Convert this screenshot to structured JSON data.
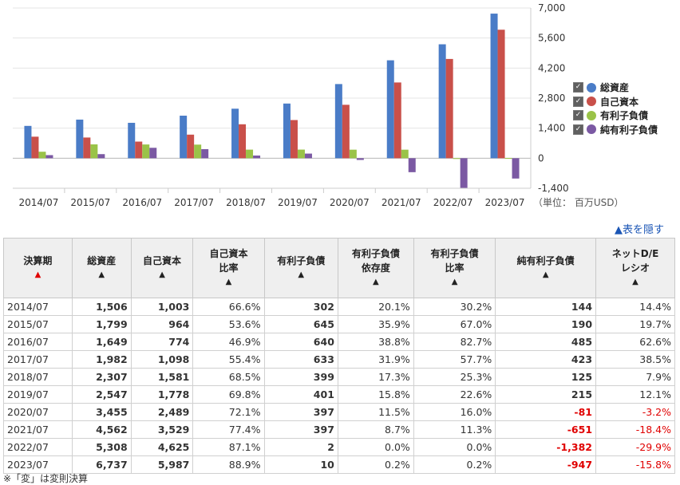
{
  "chart_data": {
    "type": "bar",
    "categories": [
      "2014/07",
      "2015/07",
      "2016/07",
      "2017/07",
      "2018/07",
      "2019/07",
      "2020/07",
      "2021/07",
      "2022/07",
      "2023/07"
    ],
    "series": [
      {
        "name": "総資産",
        "color": "#4a7cc7",
        "values": [
          1506,
          1799,
          1649,
          1982,
          2307,
          2547,
          3455,
          4562,
          5308,
          6737
        ]
      },
      {
        "name": "自己資本",
        "color": "#c9504a",
        "values": [
          1003,
          964,
          774,
          1098,
          1581,
          1778,
          2489,
          3529,
          4625,
          5987
        ]
      },
      {
        "name": "有利子負債",
        "color": "#9ac348",
        "values": [
          302,
          645,
          640,
          633,
          399,
          401,
          397,
          397,
          2,
          10
        ]
      },
      {
        "name": "純有利子負債",
        "color": "#7b59a3",
        "values": [
          144,
          190,
          485,
          423,
          125,
          215,
          -81,
          -651,
          -1382,
          -947
        ]
      }
    ],
    "y_ticks": [
      "7,000",
      "5,600",
      "4,200",
      "2,800",
      "1,400",
      "0",
      "-1,400"
    ],
    "y_tick_values": [
      7000,
      5600,
      4200,
      2800,
      1400,
      0,
      -1400
    ],
    "ylim": [
      -1400,
      7000
    ],
    "unit_label": "（単位： 百万USD）",
    "legend_position": "right",
    "grid": true
  },
  "hide_link": "▲表を隠す",
  "table": {
    "headers": [
      {
        "l1": "決算期",
        "l2": "",
        "sort": "▲",
        "active": true
      },
      {
        "l1": "総資産",
        "l2": "",
        "sort": "▲",
        "active": false
      },
      {
        "l1": "自己資本",
        "l2": "",
        "sort": "▲",
        "active": false
      },
      {
        "l1": "自己資本",
        "l2": "比率",
        "sort": "▲",
        "active": false
      },
      {
        "l1": "有利子負債",
        "l2": "",
        "sort": "▲",
        "active": false
      },
      {
        "l1": "有利子負債",
        "l2": "依存度",
        "sort": "▲",
        "active": false
      },
      {
        "l1": "有利子負債",
        "l2": "比率",
        "sort": "▲",
        "active": false
      },
      {
        "l1": "純有利子負債",
        "l2": "",
        "sort": "▲",
        "active": false
      },
      {
        "l1": "ネットD/E",
        "l2": "レシオ",
        "sort": "▲",
        "active": false
      }
    ],
    "rows": [
      [
        "2014/07",
        "1,506",
        "1,003",
        "66.6%",
        "302",
        "20.1%",
        "30.2%",
        "144",
        "14.4%"
      ],
      [
        "2015/07",
        "1,799",
        "964",
        "53.6%",
        "645",
        "35.9%",
        "67.0%",
        "190",
        "19.7%"
      ],
      [
        "2016/07",
        "1,649",
        "774",
        "46.9%",
        "640",
        "38.8%",
        "82.7%",
        "485",
        "62.6%"
      ],
      [
        "2017/07",
        "1,982",
        "1,098",
        "55.4%",
        "633",
        "31.9%",
        "57.7%",
        "423",
        "38.5%"
      ],
      [
        "2018/07",
        "2,307",
        "1,581",
        "68.5%",
        "399",
        "17.3%",
        "25.3%",
        "125",
        "7.9%"
      ],
      [
        "2019/07",
        "2,547",
        "1,778",
        "69.8%",
        "401",
        "15.8%",
        "22.6%",
        "215",
        "12.1%"
      ],
      [
        "2020/07",
        "3,455",
        "2,489",
        "72.1%",
        "397",
        "11.5%",
        "16.0%",
        "-81",
        "-3.2%"
      ],
      [
        "2021/07",
        "4,562",
        "3,529",
        "77.4%",
        "397",
        "8.7%",
        "11.3%",
        "-651",
        "-18.4%"
      ],
      [
        "2022/07",
        "5,308",
        "4,625",
        "87.1%",
        "2",
        "0.0%",
        "0.0%",
        "-1,382",
        "-29.9%"
      ],
      [
        "2023/07",
        "6,737",
        "5,987",
        "88.9%",
        "10",
        "0.2%",
        "0.2%",
        "-947",
        "-15.8%"
      ]
    ]
  },
  "footnote": "※「変」は変則決算"
}
